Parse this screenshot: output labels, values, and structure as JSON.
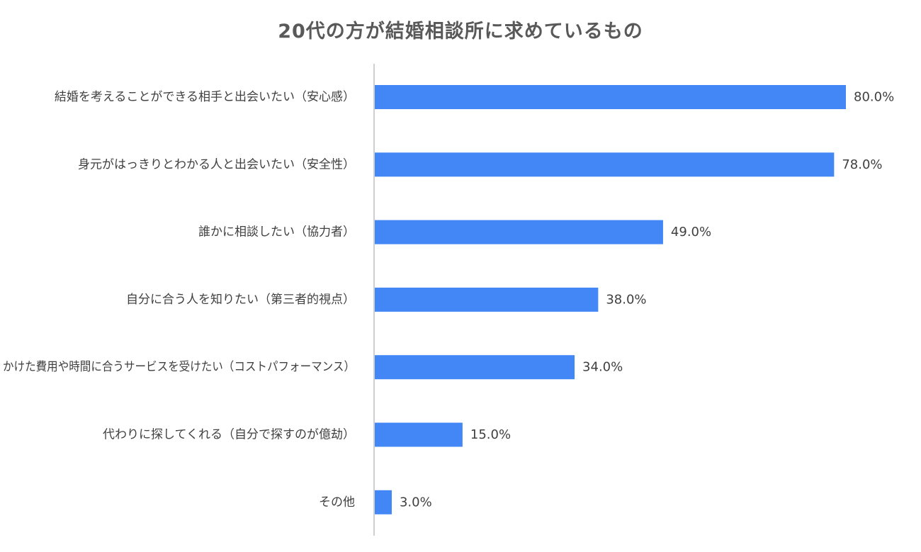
{
  "chart_data": {
    "type": "bar",
    "orientation": "horizontal",
    "title": "20代の方が結婚相談所に求めているもの",
    "categories": [
      "結婚を考えることができる相手と出会いたい（安心感）",
      "身元がはっきりとわかる人と出会いたい（安全性）",
      "誰かに相談したい（協力者）",
      "自分に合う人を知りたい（第三者的視点）",
      "かけた費用や時間に合うサービスを受けたい（コストパフォーマンス）",
      "代わりに探してくれる（自分で探すのが億劫）",
      "その他"
    ],
    "values": [
      80.0,
      78.0,
      49.0,
      38.0,
      34.0,
      15.0,
      3.0
    ],
    "value_labels": [
      "80.0%",
      "78.0%",
      "49.0%",
      "38.0%",
      "34.0%",
      "15.0%",
      "3.0%"
    ],
    "xlim": [
      0,
      80
    ],
    "xlabel": "",
    "ylabel": "",
    "grid": false,
    "legend": "none",
    "colors": {
      "bar": "#4287f5",
      "axis": "#bfbfbf",
      "title": "#595959",
      "text": "#404040"
    }
  }
}
